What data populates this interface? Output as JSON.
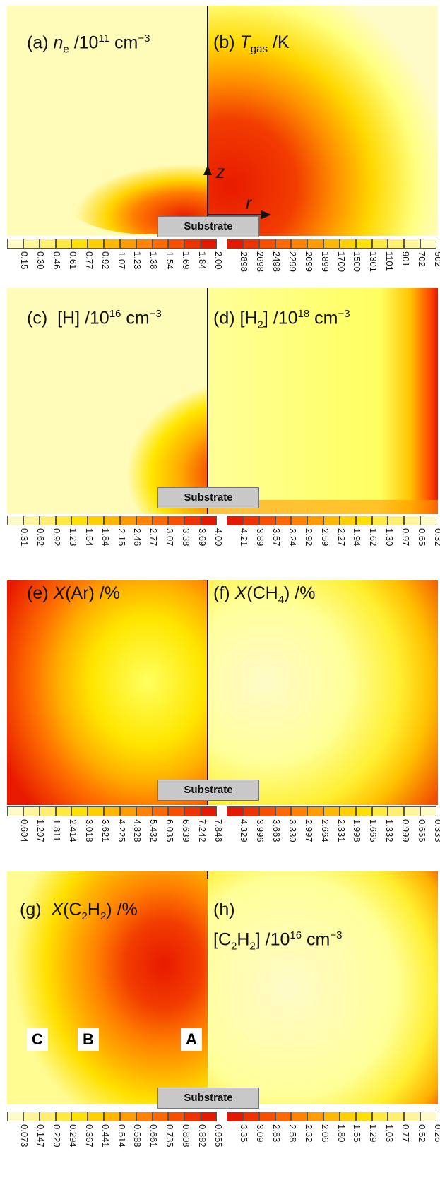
{
  "panels": [
    {
      "left_label": {
        "prefix": "(a)",
        "sym": "n",
        "sub": "e",
        "rest": " /10",
        "sup": "11",
        "unit": " cm",
        "supunit": "−3"
      },
      "right_label": {
        "prefix": "(b)",
        "sym": "T",
        "sub": "gas",
        "rest": " /K"
      },
      "axis": {
        "z": "z",
        "r": "r"
      },
      "substrate": "Substrate",
      "left_ticks": [
        "0.15",
        "0.30",
        "0.46",
        "0.61",
        "0.77",
        "0.92",
        "1.07",
        "1.23",
        "1.38",
        "1.54",
        "1.69",
        "1.84",
        "2.00"
      ],
      "right_ticks": [
        "2898",
        "2698",
        "2498",
        "2299",
        "2099",
        "1899",
        "1700",
        "1500",
        "1301",
        "1101",
        "901",
        "702",
        "502"
      ]
    },
    {
      "left_label": {
        "prefix": "(c)",
        "text": "[H] /10",
        "sup": "16",
        "unit": " cm",
        "supunit": "−3"
      },
      "right_label": {
        "prefix": "(d)",
        "text": "[H",
        "sub": "2",
        "rest": "] /10",
        "sup": "18",
        "unit": " cm",
        "supunit": "−3"
      },
      "substrate": "Substrate",
      "left_ticks": [
        "0.31",
        "0.62",
        "0.92",
        "1.23",
        "1.54",
        "1.84",
        "2.15",
        "2.46",
        "2.77",
        "3.07",
        "3.38",
        "3.69",
        "4.00"
      ],
      "right_ticks": [
        "4.21",
        "3.89",
        "3.57",
        "3.24",
        "2.92",
        "2.59",
        "2.27",
        "1.94",
        "1.62",
        "1.30",
        "0.97",
        "0.65",
        "0.32"
      ]
    },
    {
      "left_label": {
        "prefix": "(e)",
        "sym": "X",
        "rest": "(Ar) /%"
      },
      "right_label": {
        "prefix": "(f)",
        "sym": "X",
        "rest": "(CH",
        "sub": "4",
        "rest2": ") /%"
      },
      "substrate": "Substrate",
      "left_ticks": [
        "0.604",
        "1.207",
        "1.811",
        "2.414",
        "3.018",
        "3.621",
        "4.225",
        "4.828",
        "5.432",
        "6.035",
        "6.639",
        "7.242",
        "7.846"
      ],
      "right_ticks": [
        "4.329",
        "3.996",
        "3.663",
        "3.330",
        "2.997",
        "2.664",
        "2.331",
        "1.998",
        "1.665",
        "1.332",
        "0.999",
        "0.666",
        "0.333"
      ]
    },
    {
      "left_label": {
        "prefix": "(g)",
        "sym": "X",
        "rest": "(C",
        "sub": "2",
        "rest2": "H",
        "sub2": "2",
        "rest3": ") /%"
      },
      "right_label": {
        "prefix": "(h)",
        "line2": "[C",
        "sub": "2",
        "rest": "H",
        "sub2": "2",
        "rest2": "] /10",
        "sup": "16",
        "unit": " cm",
        "supunit": "−3"
      },
      "markers": [
        "C",
        "B",
        "A"
      ],
      "substrate": "Substrate",
      "left_ticks": [
        "0.073",
        "0.147",
        "0.220",
        "0.294",
        "0.367",
        "0.441",
        "0.514",
        "0.588",
        "0.661",
        "0.735",
        "0.808",
        "0.882",
        "0.955"
      ],
      "right_ticks": [
        "3.35",
        "3.09",
        "2.83",
        "2.58",
        "2.32",
        "2.06",
        "1.80",
        "1.55",
        "1.29",
        "1.03",
        "0.77",
        "0.52",
        "0.26"
      ]
    }
  ],
  "colors": {
    "pale": "#fffbb8",
    "light": "#ffff66",
    "yellow": "#ffe600",
    "orange": "#ff9a00",
    "dark_orange": "#f26a00",
    "red": "#e81a00",
    "left_scale": [
      "#fffbc8",
      "#fff59a",
      "#ffef70",
      "#ffe93f",
      "#ffe100",
      "#ffd000",
      "#ffb800",
      "#ff9d00",
      "#ff8300",
      "#ff6a00",
      "#f74f00",
      "#ed3300",
      "#e31a00"
    ],
    "right_scale": [
      "#e31a00",
      "#ed3300",
      "#f74f00",
      "#ff6a00",
      "#ff8300",
      "#ff9d00",
      "#ffb800",
      "#ffd000",
      "#ffe100",
      "#ffe93f",
      "#ffef70",
      "#fff59a",
      "#fffbc8"
    ]
  }
}
